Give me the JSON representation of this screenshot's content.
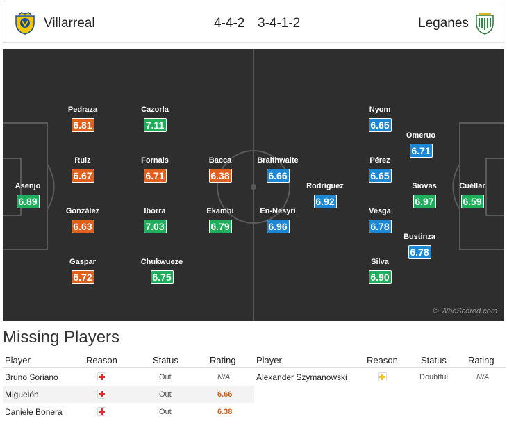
{
  "header": {
    "home_team": "Villarreal",
    "away_team": "Leganes",
    "home_formation": "4-4-2",
    "away_formation": "3-4-1-2"
  },
  "colors": {
    "pitch": "#2e2e2e",
    "rating_low": "#e0601e",
    "rating_mid": "#1fae5b",
    "rating_away": "#1c87d4",
    "injury_red": "#d9302c",
    "doubtful_yellow": "#f3c52c"
  },
  "pitch": {
    "watermark": "© WhoScored.com",
    "home_players": [
      {
        "name": "Asenjo",
        "rating": "6.89",
        "color": "green"
      },
      {
        "name": "Pedraza",
        "rating": "6.81",
        "color": "orange"
      },
      {
        "name": "Ruiz",
        "rating": "6.67",
        "color": "orange"
      },
      {
        "name": "González",
        "rating": "6.63",
        "color": "orange"
      },
      {
        "name": "Gaspar",
        "rating": "6.72",
        "color": "orange"
      },
      {
        "name": "Cazorla",
        "rating": "7.11",
        "color": "green"
      },
      {
        "name": "Fornals",
        "rating": "6.71",
        "color": "orange"
      },
      {
        "name": "Iborra",
        "rating": "7.03",
        "color": "green"
      },
      {
        "name": "Chukwueze",
        "rating": "6.75",
        "color": "green"
      },
      {
        "name": "Bacca",
        "rating": "6.38",
        "color": "orange"
      },
      {
        "name": "Ekambi",
        "rating": "6.79",
        "color": "green"
      }
    ],
    "away_players": [
      {
        "name": "Braithwaite",
        "rating": "6.66",
        "color": "blue"
      },
      {
        "name": "En-Nesyri",
        "rating": "6.96",
        "color": "blue"
      },
      {
        "name": "Rodríguez",
        "rating": "6.92",
        "color": "blue"
      },
      {
        "name": "Nyom",
        "rating": "6.65",
        "color": "blue"
      },
      {
        "name": "Pérez",
        "rating": "6.65",
        "color": "blue"
      },
      {
        "name": "Vesga",
        "rating": "6.78",
        "color": "blue"
      },
      {
        "name": "Silva",
        "rating": "6.90",
        "color": "green"
      },
      {
        "name": "Omeruo",
        "rating": "6.71",
        "color": "blue"
      },
      {
        "name": "Siovas",
        "rating": "6.97",
        "color": "green"
      },
      {
        "name": "Bustinza",
        "rating": "6.78",
        "color": "blue"
      },
      {
        "name": "Cuéllar",
        "rating": "6.59",
        "color": "green"
      }
    ]
  },
  "missing": {
    "title": "Missing Players",
    "columns": {
      "player": "Player",
      "reason": "Reason",
      "status": "Status",
      "rating": "Rating"
    },
    "home": [
      {
        "player": "Bruno Soriano",
        "reason": "injury",
        "status": "Out",
        "rating": "N/A"
      },
      {
        "player": "Miguelón",
        "reason": "injury",
        "status": "Out",
        "rating": "6.66"
      },
      {
        "player": "Daniele Bonera",
        "reason": "injury",
        "status": "Out",
        "rating": "6.38"
      }
    ],
    "away": [
      {
        "player": "Alexander Szymanowski",
        "reason": "doubtful",
        "status": "Doubtful",
        "rating": "N/A"
      }
    ]
  }
}
